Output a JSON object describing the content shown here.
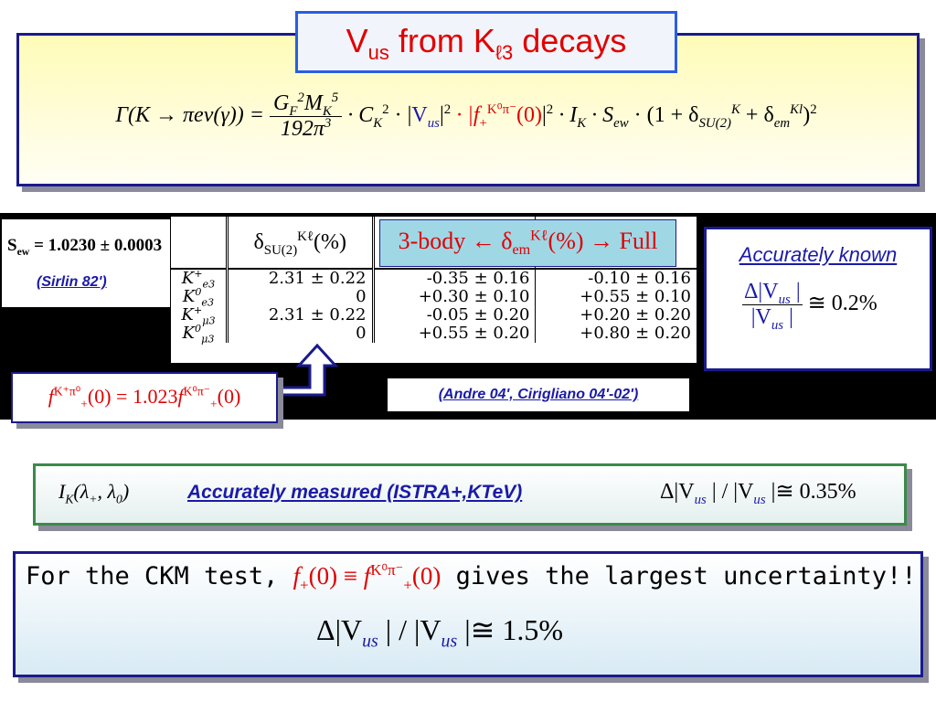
{
  "title": {
    "main": "V",
    "sub": "us",
    "rest1": " from K",
    "sub2": "ℓ3",
    "rest2": " decays"
  },
  "formula": {
    "lhs": "Γ(K → πeν(γ)) = ",
    "num": "G",
    "num_sub": "F",
    "num_sup": "2",
    "num_m": "M",
    "num_m_sub": "K",
    "num_m_sup": "5",
    "den": "192π",
    "den_sup": "3",
    "ck": " · C",
    "ck_sub": "K",
    "ck_sup": "2",
    "vus_open": " · |",
    "vus": "V",
    "vus_sub": "us",
    "vus_close": "|",
    "vus_sup": "2",
    "f": " · |f",
    "f_sub": "+",
    "f_sup": "K⁰π⁻",
    "f_arg": "(0)",
    "f_close": "|",
    "f_pow": "2",
    "ik": " · I",
    "ik_sub": "K",
    "sew": " · S",
    "sew_sub": "ew",
    "paren": " · (1 + δ",
    "d1_sub": "SU(2)",
    "d1_sup": "K",
    "plus": " + δ",
    "d2_sub": "em",
    "d2_sup": "Kl",
    "tail": ")",
    "tail_sup": "2"
  },
  "sew": {
    "label": "S",
    "sub": "ew",
    "value": " = 1.0230 ± 0.0003",
    "ref": "(Sirlin 82')"
  },
  "table": {
    "col1_header": "δ",
    "col1_header_sub": "SU(2)",
    "col1_header_sup": "Kℓ",
    "col1_header_unit": "(%)",
    "overlay": "3-body ← δ",
    "overlay_sub": "em",
    "overlay_sup": "Kℓ",
    "overlay_tail": "(%) → Full",
    "rows": [
      {
        "name": "K",
        "name_sup": "+",
        "name_sub": "e3",
        "su2": "2.31 ± 0.22",
        "body3": "-0.35 ± 0.16",
        "full": "-0.10 ± 0.16"
      },
      {
        "name": "K",
        "name_sup": "0",
        "name_sub": "e3",
        "su2": "0",
        "body3": "+0.30 ± 0.10",
        "full": "+0.55 ± 0.10"
      },
      {
        "name": "K",
        "name_sup": "+",
        "name_sub": "μ3",
        "su2": "2.31 ± 0.22",
        "body3": "-0.05 ± 0.20",
        "full": "+0.20 ± 0.20"
      },
      {
        "name": "K",
        "name_sup": "0",
        "name_sub": "μ3",
        "su2": "0",
        "body3": "+0.55 ± 0.20",
        "full": "+0.80 ± 0.20"
      }
    ]
  },
  "frel": {
    "f": "f",
    "sup1": "K⁺π⁰",
    "sub": "+",
    "mid": "(0) = 1.023",
    "f2": "f",
    "sup2": "K⁰π⁻",
    "sub2": "+",
    "end": "(0)"
  },
  "andre": "(Andre 04', Cirigliano 04'-02')",
  "known": {
    "label": "Accurately known",
    "num": "Δ|V",
    "num_sub": "us",
    "num_close": " |",
    "den": "|V",
    "den_sub": "us",
    "den_close": " |",
    "approx": " ≅ 0.2%"
  },
  "measured": {
    "ik": "I",
    "ik_sub": "K",
    "ik_args": "(λ",
    "l1_sub": "+",
    "mid": ", λ",
    "l2_sub": "0",
    "end": ")",
    "label": "Accurately measured (ISTRA+,KTeV)",
    "ratio_a": "Δ|V",
    "ratio_sub1": "us",
    "ratio_b": " | / |V",
    "ratio_sub2": "us",
    "ratio_c": " |≅ 0.35%"
  },
  "ckm": {
    "prefix": "For the CKM test, ",
    "f1": "f",
    "f1_sub": "+",
    "f1_arg": "(0) ≡ ",
    "f2": "f",
    "f2_sub": "+",
    "f2_sup": "K⁰π⁻",
    "f2_arg": "(0)",
    "suffix": " gives the largest uncertainty!!",
    "ratio_a": "Δ|V",
    "ratio_sub1": "us",
    "ratio_b": " | / |V",
    "ratio_sub2": "us",
    "ratio_c": " |≅ 1.5%"
  },
  "colors": {
    "accent_red": "#e00000",
    "accent_blue": "#1a1aa8",
    "frame_blue": "#1a1a8c",
    "frame_green": "#3a8a4a",
    "band": "#000000",
    "formula_bg": "#fffbb8",
    "overlay_bg": "#9fd7e5"
  }
}
